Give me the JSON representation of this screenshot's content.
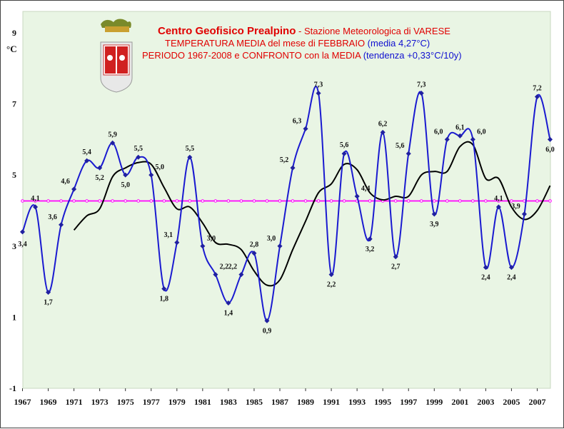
{
  "chart_data": {
    "type": "line",
    "title": {
      "line1_main": "Centro Geofisico Prealpino",
      "line1_sep": " - ",
      "line1_sub": "Stazione Meteorologica di VARESE",
      "line2_main": "TEMPERATURA MEDIA del mese di FEBBRAIO",
      "line2_note": " (media 4,27°C)",
      "line3_main": "PERIODO 1967-2008 e CONFRONTO con la MEDIA",
      "line3_note": " (tendenza +0,33°C/10y)"
    },
    "ylabel": "°C",
    "ylim": [
      -1,
      9.6
    ],
    "xlim": [
      1967,
      2008
    ],
    "y_ticks": [
      "9",
      "7",
      "5",
      "3",
      "1",
      "-1"
    ],
    "y_tick_values": [
      9,
      7,
      5,
      3,
      1,
      -1
    ],
    "x_ticks": [
      "1967",
      "1969",
      "1971",
      "1973",
      "1975",
      "1977",
      "1979",
      "1981",
      "1983",
      "1985",
      "1987",
      "1989",
      "1991",
      "1993",
      "1995",
      "1997",
      "1999",
      "2001",
      "2003",
      "2005",
      "2007"
    ],
    "x_tick_values": [
      1967,
      1969,
      1971,
      1973,
      1975,
      1977,
      1979,
      1981,
      1983,
      1985,
      1987,
      1989,
      1991,
      1993,
      1995,
      1997,
      1999,
      2001,
      2003,
      2005,
      2007
    ],
    "series": [
      {
        "x": [
          1967,
          1968,
          1969,
          1970,
          1971,
          1972,
          1973,
          1974,
          1975,
          1976,
          1977,
          1978,
          1979,
          1980,
          1981,
          1982,
          1983,
          1984,
          1985,
          1986,
          1987,
          1988,
          1989,
          1990,
          1991,
          1992,
          1993,
          1994,
          1995,
          1996,
          1997,
          1998,
          1999,
          2000,
          2001,
          2002,
          2003,
          2004,
          2005,
          2006,
          2007,
          2008
        ],
        "values": [
          3.4,
          4.1,
          1.7,
          3.6,
          4.6,
          5.4,
          5.2,
          5.9,
          5.0,
          5.5,
          5.0,
          1.8,
          3.1,
          5.5,
          3.0,
          2.2,
          1.4,
          2.2,
          2.8,
          0.9,
          3.0,
          5.2,
          6.3,
          7.3,
          2.2,
          5.6,
          4.4,
          3.2,
          6.2,
          2.7,
          5.6,
          7.3,
          3.9,
          6.0,
          6.1,
          6.0,
          2.4,
          4.1,
          2.4,
          3.9,
          7.2,
          6.0
        ],
        "labels": [
          "3,4",
          "4,1",
          "1,7",
          "3,6",
          "4,6",
          "5,4",
          "5,2",
          "5,9",
          "5,0",
          "5,5",
          "5,0",
          "1,8",
          "3,1",
          "5,5",
          "3,0",
          "2,2",
          "1,4",
          "2,2",
          "2,8",
          "0,9",
          "3,0",
          "5,2",
          "6,3",
          "7,3",
          "2,2",
          "5,6",
          "4,4",
          "3,2",
          "6,2",
          "2,7",
          "5,6",
          "7,3",
          "3,9",
          "6,0",
          "6,1",
          "6,0",
          "2,4",
          "4,1",
          "2,4",
          "3,9",
          "7,2",
          "6,0"
        ],
        "color": "#1a1ad0"
      },
      {
        "x": [
          1971,
          1972,
          1973,
          1974,
          1975,
          1976,
          1977,
          1978,
          1979,
          1980,
          1981,
          1982,
          1983,
          1984,
          1985,
          1986,
          1987,
          1988,
          1989,
          1990,
          1991,
          1992,
          1993,
          1994,
          1995,
          1996,
          1997,
          1998,
          1999,
          2000,
          2001,
          2002,
          2003,
          2004,
          2005,
          2006,
          2007,
          2008
        ],
        "values": [
          3.45,
          3.85,
          4.05,
          4.95,
          5.2,
          5.35,
          5.3,
          4.65,
          4.05,
          4.1,
          3.65,
          3.1,
          3.05,
          2.9,
          2.3,
          1.9,
          2.05,
          2.9,
          3.7,
          4.5,
          4.75,
          5.3,
          5.15,
          4.5,
          4.3,
          4.4,
          4.4,
          5.0,
          5.1,
          5.1,
          5.8,
          5.85,
          4.9,
          4.9,
          4.1,
          3.75,
          4.0,
          4.7
        ],
        "color": "#000000"
      },
      {
        "x": [
          1967,
          1968,
          1969,
          1970,
          1971,
          1972,
          1973,
          1974,
          1975,
          1976,
          1977,
          1978,
          1979,
          1980,
          1981,
          1982,
          1983,
          1984,
          1985,
          1986,
          1987,
          1988,
          1989,
          1990,
          1991,
          1992,
          1993,
          1994,
          1995,
          1996,
          1997,
          1998,
          1999,
          2000,
          2001,
          2002,
          2003,
          2004,
          2005,
          2006,
          2007,
          2008
        ],
        "constant": 4.27,
        "color": "#ff00ff"
      }
    ],
    "grid": false,
    "background": "#e9f5e4",
    "legend": "none"
  }
}
